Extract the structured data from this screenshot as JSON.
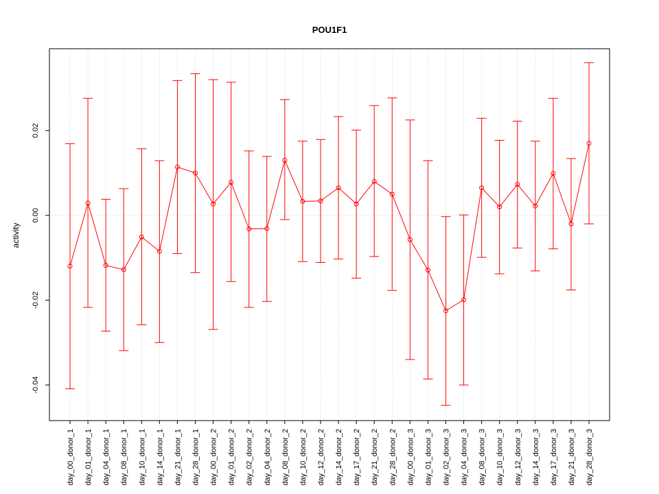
{
  "chart_data": {
    "type": "line",
    "title": "POU1F1",
    "xlabel": "",
    "ylabel": "activity",
    "ylim": [
      -0.0484,
      0.0393
    ],
    "yticks": [
      -0.04,
      -0.02,
      0.0,
      0.02
    ],
    "ytick_labels": [
      "-0.04",
      "-0.02",
      "0.00",
      "0.02"
    ],
    "grid": true,
    "reference_line_y": 0.0,
    "series_color": "#ff0000",
    "grid_color": "#c8c8c8",
    "categories": [
      "day_00_donor_1",
      "day_01_donor_1",
      "day_04_donor_1",
      "day_08_donor_1",
      "day_10_donor_1",
      "day_14_donor_1",
      "day_21_donor_1",
      "day_28_donor_1",
      "day_00_donor_2",
      "day_01_donor_2",
      "day_02_donor_2",
      "day_04_donor_2",
      "day_08_donor_2",
      "day_10_donor_2",
      "day_12_donor_2",
      "day_14_donor_2",
      "day_17_donor_2",
      "day_21_donor_2",
      "day_28_donor_2",
      "day_00_donor_3",
      "day_01_donor_3",
      "day_02_donor_3",
      "day_04_donor_3",
      "day_08_donor_3",
      "day_10_donor_3",
      "day_12_donor_3",
      "day_14_donor_3",
      "day_17_donor_3",
      "day_21_donor_3",
      "day_28_donor_3"
    ],
    "values": [
      -0.012,
      0.0029,
      -0.0118,
      -0.0128,
      -0.0051,
      -0.0085,
      0.0114,
      0.01,
      0.0027,
      0.0078,
      -0.0032,
      -0.0031,
      0.013,
      0.0033,
      0.0034,
      0.0065,
      0.0027,
      0.008,
      0.005,
      -0.0057,
      -0.0129,
      -0.0225,
      -0.0199,
      0.0065,
      0.002,
      0.0073,
      0.0022,
      0.0099,
      -0.002,
      0.017
    ],
    "upper": [
      0.0169,
      0.0276,
      0.0038,
      0.0063,
      0.0157,
      0.0129,
      0.0318,
      0.0334,
      0.032,
      0.0314,
      0.0152,
      0.0139,
      0.0273,
      0.0175,
      0.0179,
      0.0233,
      0.0201,
      0.0259,
      0.0277,
      0.0225,
      0.0129,
      -0.0003,
      0.0001,
      0.0229,
      0.0177,
      0.0222,
      0.0175,
      0.0276,
      0.0134,
      0.036
    ],
    "lower": [
      -0.0409,
      -0.0217,
      -0.0273,
      -0.0319,
      -0.0258,
      -0.03,
      -0.009,
      -0.0135,
      -0.0269,
      -0.0156,
      -0.0217,
      -0.0203,
      -0.001,
      -0.0109,
      -0.0111,
      -0.0103,
      -0.0148,
      -0.0097,
      -0.0177,
      -0.034,
      -0.0386,
      -0.0448,
      -0.04,
      -0.0099,
      -0.0138,
      -0.0077,
      -0.0131,
      -0.0079,
      -0.0176,
      -0.002
    ]
  }
}
